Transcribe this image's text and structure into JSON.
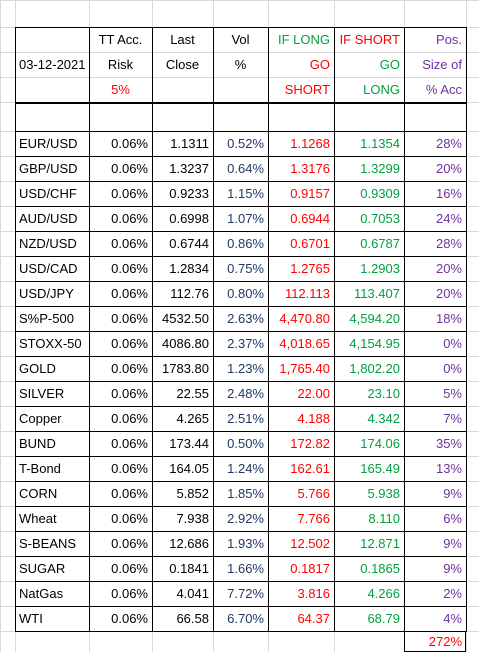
{
  "header": {
    "date": "03-12-2021",
    "columns": [
      [
        "TT Acc.",
        "Risk",
        "5%"
      ],
      [
        "Last",
        "Close"
      ],
      [
        "Vol",
        "%"
      ],
      [
        "IF LONG",
        "GO",
        "SHORT"
      ],
      [
        "IF SHORT",
        "GO",
        "LONG"
      ],
      [
        "Pos.",
        "Size of",
        "% Acc"
      ]
    ]
  },
  "table": {
    "rows": [
      [
        "EUR/USD",
        "0.06%",
        "1.1311",
        "0.52%",
        "1.1268",
        "1.1354",
        "28%"
      ],
      [
        "GBP/USD",
        "0.06%",
        "1.3237",
        "0.64%",
        "1.3176",
        "1.3299",
        "20%"
      ],
      [
        "USD/CHF",
        "0.06%",
        "0.9233",
        "1.15%",
        "0.9157",
        "0.9309",
        "16%"
      ],
      [
        "AUD/USD",
        "0.06%",
        "0.6998",
        "1.07%",
        "0.6944",
        "0.7053",
        "24%"
      ],
      [
        "NZD/USD",
        "0.06%",
        "0.6744",
        "0.86%",
        "0.6701",
        "0.6787",
        "28%"
      ],
      [
        "USD/CAD",
        "0.06%",
        "1.2834",
        "0.75%",
        "1.2765",
        "1.2903",
        "20%"
      ],
      [
        "USD/JPY",
        "0.06%",
        "112.76",
        "0.80%",
        "112.113",
        "113.407",
        "20%"
      ],
      [
        "S%P-500",
        "0.06%",
        "4532.50",
        "2.63%",
        "4,470.80",
        "4,594.20",
        "18%"
      ],
      [
        "STOXX-50",
        "0.06%",
        "4086.80",
        "2.37%",
        "4,018.65",
        "4,154.95",
        "0%"
      ],
      [
        "GOLD",
        "0.06%",
        "1783.80",
        "1.23%",
        "1,765.40",
        "1,802.20",
        "0%"
      ],
      [
        "SILVER",
        "0.06%",
        "22.55",
        "2.48%",
        "22.00",
        "23.10",
        "5%"
      ],
      [
        "Copper",
        "0.06%",
        "4.265",
        "2.51%",
        "4.188",
        "4.342",
        "7%"
      ],
      [
        "BUND",
        "0.06%",
        "173.44",
        "0.50%",
        "172.82",
        "174.06",
        "35%"
      ],
      [
        "T-Bond",
        "0.06%",
        "164.05",
        "1.24%",
        "162.61",
        "165.49",
        "13%"
      ],
      [
        "CORN",
        "0.06%",
        "5.852",
        "1.85%",
        "5.766",
        "5.938",
        "9%"
      ],
      [
        "Wheat",
        "0.06%",
        "7.938",
        "2.92%",
        "7.766",
        "8.110",
        "6%"
      ],
      [
        "S-BEANS",
        "0.06%",
        "12.686",
        "1.93%",
        "12.502",
        "12.871",
        "9%"
      ],
      [
        "SUGAR",
        "0.06%",
        "0.1841",
        "1.66%",
        "0.1817",
        "0.1865",
        "9%"
      ],
      [
        "NatGas",
        "0.06%",
        "4.041",
        "7.72%",
        "3.816",
        "4.266",
        "2%"
      ],
      [
        "WTI",
        "0.06%",
        "66.58",
        "6.70%",
        "64.37",
        "68.79",
        "4%"
      ]
    ]
  },
  "total": "272%"
}
